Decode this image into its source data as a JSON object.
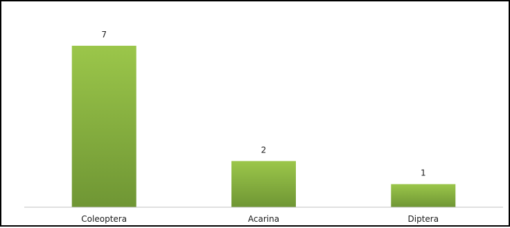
{
  "chart_data": {
    "type": "bar",
    "categories": [
      "Coleoptera",
      "Acarina",
      "Diptera"
    ],
    "values": [
      7,
      2,
      1
    ],
    "data_labels": [
      "7",
      "2",
      "1"
    ],
    "ylim": [
      0,
      7
    ],
    "grid": false,
    "legend": "none",
    "colors": {
      "bar_top": "#9bc64a",
      "bar_bottom": "#6f9634",
      "axis": "#c0c0c0",
      "frame": "#000000"
    }
  }
}
